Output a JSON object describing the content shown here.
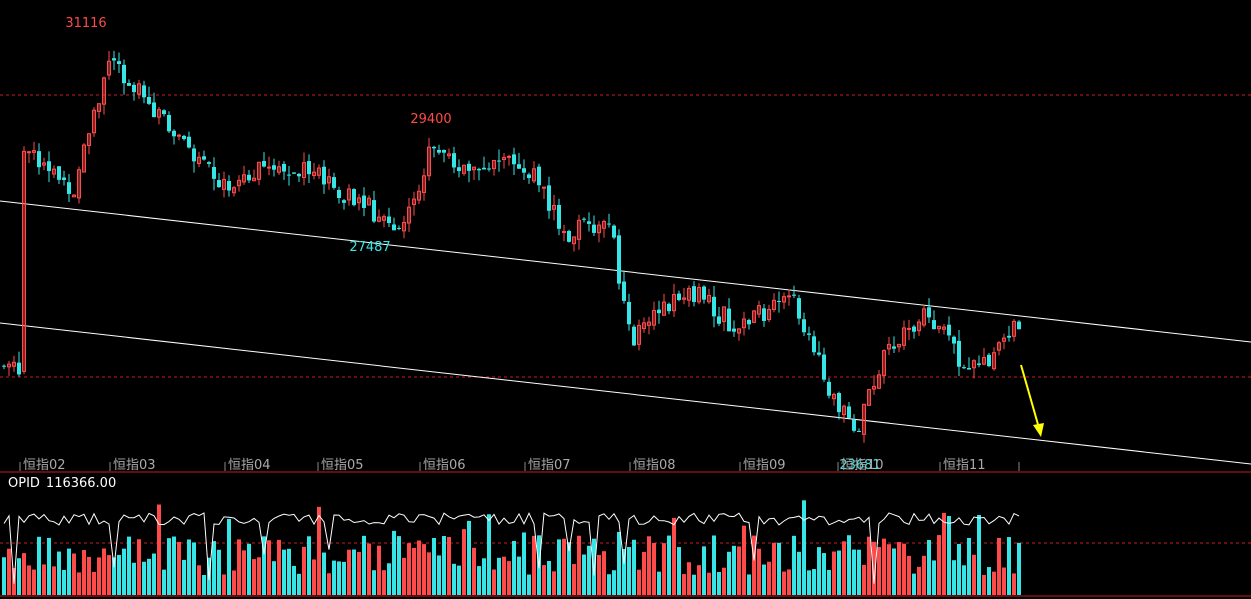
{
  "chart_data": {
    "type": "candlestick",
    "x_axis_labels": [
      "恒指02",
      "恒指03",
      "恒指04",
      "恒指05",
      "恒指06",
      "恒指07",
      "恒指08",
      "恒指09",
      "恒指10",
      "恒指11"
    ],
    "price_annotations": [
      {
        "label": "31116",
        "kind": "high",
        "month_index": 1,
        "value": 31116
      },
      {
        "label": "29400",
        "kind": "high",
        "month_index": 4,
        "value": 29400
      },
      {
        "label": "27487",
        "kind": "low",
        "month_index": 3,
        "value": 27487
      },
      {
        "label": "23681",
        "kind": "low",
        "month_index": 8,
        "value": 23681
      }
    ],
    "price_range": [
      23400,
      31600
    ],
    "key_points": [
      {
        "month_index": 0.0,
        "close": 29300
      },
      {
        "month_index": 0.6,
        "close": 28400
      },
      {
        "month_index": 1.0,
        "close": 30900
      },
      {
        "month_index": 1.5,
        "close": 29600
      },
      {
        "month_index": 2.0,
        "close": 28500
      },
      {
        "month_index": 2.5,
        "close": 28900
      },
      {
        "month_index": 3.0,
        "close": 28600
      },
      {
        "month_index": 3.5,
        "close": 28000
      },
      {
        "month_index": 3.8,
        "close": 27550
      },
      {
        "month_index": 4.1,
        "close": 29100
      },
      {
        "month_index": 4.5,
        "close": 28700
      },
      {
        "month_index": 5.0,
        "close": 28900
      },
      {
        "month_index": 5.4,
        "close": 27500
      },
      {
        "month_index": 5.8,
        "close": 27800
      },
      {
        "month_index": 6.0,
        "close": 25500
      },
      {
        "month_index": 6.5,
        "close": 26500
      },
      {
        "month_index": 7.0,
        "close": 25700
      },
      {
        "month_index": 7.5,
        "close": 26400
      },
      {
        "month_index": 7.9,
        "close": 24600
      },
      {
        "month_index": 8.2,
        "close": 23800
      },
      {
        "month_index": 8.5,
        "close": 25400
      },
      {
        "month_index": 8.9,
        "close": 26000
      },
      {
        "month_index": 9.2,
        "close": 25100
      },
      {
        "month_index": 9.5,
        "close": 25100
      },
      {
        "month_index": 9.8,
        "close": 25800
      },
      {
        "month_index": 10.0,
        "close": 25000
      }
    ],
    "trend_channel": {
      "upper_line": true,
      "lower_line": true
    },
    "forecast_arrow": {
      "direction": "down",
      "color": "#ffff00"
    },
    "colors": {
      "up": "#ff4a4a",
      "down": "#36e6e6",
      "grid": "#c81e1e",
      "channel": "#ffffff",
      "annotation_high": "#ff4a4a",
      "annotation_low": "#36e6e6"
    },
    "indicator": {
      "name": "OPID",
      "value_label": "116366.00",
      "bars": "daily histogram, red when index up, cyan when down",
      "line": "white oscillator line"
    }
  }
}
